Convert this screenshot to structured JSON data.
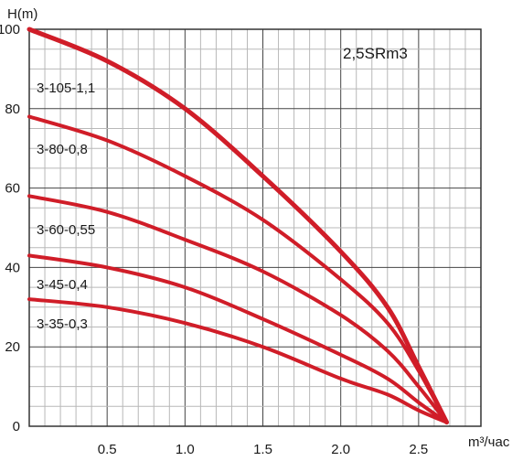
{
  "chart_data": {
    "type": "line",
    "title": "2,5SRm3",
    "xlabel": "m³/час",
    "ylabel": "H(m)",
    "xlim": [
      0,
      2.9
    ],
    "ylim": [
      0,
      100
    ],
    "x_ticks": [
      "0.5",
      "1.0",
      "1.5",
      "2.0",
      "2.5"
    ],
    "y_ticks": [
      "0",
      "20",
      "40",
      "60",
      "80",
      "100"
    ],
    "grid": true,
    "series": [
      {
        "name": "3-105-1,1",
        "x": [
          0,
          0.5,
          1.0,
          1.5,
          2.0,
          2.3,
          2.5,
          2.68
        ],
        "y": [
          100,
          92,
          80,
          63,
          44,
          30,
          15,
          1
        ]
      },
      {
        "name": "3-80-0,8",
        "x": [
          0,
          0.5,
          1.0,
          1.5,
          2.0,
          2.3,
          2.5,
          2.68
        ],
        "y": [
          78,
          72,
          63,
          52,
          37,
          26,
          14,
          1
        ]
      },
      {
        "name": "3-60-0,55",
        "x": [
          0,
          0.5,
          1.0,
          1.5,
          2.0,
          2.3,
          2.5,
          2.68
        ],
        "y": [
          58,
          54,
          47,
          39,
          28,
          19,
          10,
          1
        ]
      },
      {
        "name": "3-45-0,4",
        "x": [
          0,
          0.5,
          1.0,
          1.5,
          2.0,
          2.3,
          2.5,
          2.68
        ],
        "y": [
          43,
          40,
          35,
          27,
          18,
          12,
          6,
          1
        ]
      },
      {
        "name": "3-35-0,3",
        "x": [
          0,
          0.5,
          1.0,
          1.5,
          2.0,
          2.3,
          2.5,
          2.68
        ],
        "y": [
          32,
          30,
          26,
          20,
          12,
          8,
          4,
          1
        ]
      }
    ],
    "line_color": "#d01d28"
  }
}
